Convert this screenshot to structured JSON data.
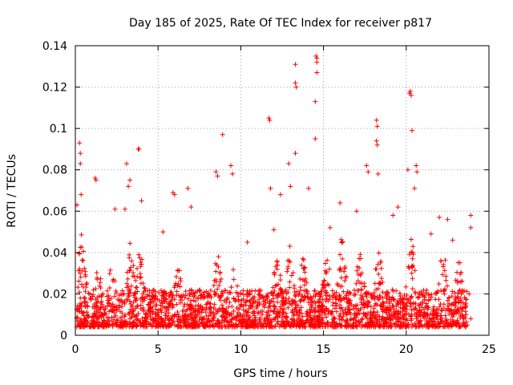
{
  "chart_data": {
    "type": "scatter",
    "title": "Day 185 of 2025, Rate Of TEC Index for receiver p817",
    "xlabel": "GPS time / hours",
    "ylabel": "ROTI / TECUs",
    "xlim": [
      0,
      25
    ],
    "ylim": [
      0,
      0.14
    ],
    "x_ticks": [
      0,
      5,
      10,
      15,
      20,
      25
    ],
    "y_ticks": [
      0,
      0.02,
      0.04,
      0.06,
      0.08,
      0.1,
      0.12,
      0.14
    ],
    "x_tick_labels": [
      "0",
      "5",
      "10",
      "15",
      "20",
      "25"
    ],
    "y_tick_labels": [
      "0",
      "0.02",
      "0.04",
      "0.06",
      "0.08",
      "0.1",
      "0.12",
      "0.14"
    ],
    "grid": true,
    "marker": "+",
    "color": "#ff0000",
    "series": [
      {
        "name": "ROTI",
        "points": [
          [
            0.1,
            0.063
          ],
          [
            0.25,
            0.093
          ],
          [
            0.3,
            0.088
          ],
          [
            0.3,
            0.083
          ],
          [
            0.35,
            0.068
          ],
          [
            1.2,
            0.076
          ],
          [
            1.25,
            0.075
          ],
          [
            3.1,
            0.083
          ],
          [
            3.3,
            0.075
          ],
          [
            3.2,
            0.072
          ],
          [
            3.8,
            0.09
          ],
          [
            3.85,
            0.09
          ],
          [
            5.9,
            0.069
          ],
          [
            6.0,
            0.068
          ],
          [
            6.8,
            0.071
          ],
          [
            8.5,
            0.079
          ],
          [
            8.6,
            0.077
          ],
          [
            8.9,
            0.097
          ],
          [
            9.4,
            0.082
          ],
          [
            9.5,
            0.078
          ],
          [
            11.7,
            0.105
          ],
          [
            11.75,
            0.104
          ],
          [
            11.8,
            0.071
          ],
          [
            12.4,
            0.068
          ],
          [
            12.9,
            0.083
          ],
          [
            13.0,
            0.072
          ],
          [
            13.3,
            0.131
          ],
          [
            13.3,
            0.122
          ],
          [
            13.35,
            0.12
          ],
          [
            13.3,
            0.088
          ],
          [
            14.1,
            0.071
          ],
          [
            14.5,
            0.113
          ],
          [
            14.5,
            0.095
          ],
          [
            14.55,
            0.135
          ],
          [
            14.6,
            0.134
          ],
          [
            14.6,
            0.132
          ],
          [
            14.6,
            0.127
          ],
          [
            17.6,
            0.082
          ],
          [
            17.7,
            0.079
          ],
          [
            18.2,
            0.104
          ],
          [
            18.25,
            0.101
          ],
          [
            18.2,
            0.094
          ],
          [
            18.25,
            0.092
          ],
          [
            18.3,
            0.078
          ],
          [
            19.2,
            0.058
          ],
          [
            20.1,
            0.08
          ],
          [
            20.2,
            0.117
          ],
          [
            20.25,
            0.118
          ],
          [
            20.3,
            0.116
          ],
          [
            20.35,
            0.099
          ],
          [
            20.6,
            0.082
          ],
          [
            20.65,
            0.079
          ],
          [
            20.5,
            0.071
          ],
          [
            22.0,
            0.057
          ],
          [
            22.5,
            0.056
          ],
          [
            23.9,
            0.058
          ],
          [
            23.9,
            0.052
          ],
          [
            23.8,
            0.02
          ],
          [
            23.9,
            0.008
          ],
          [
            23.7,
            0.005
          ],
          [
            2.4,
            0.061
          ],
          [
            3.0,
            0.061
          ],
          [
            4.0,
            0.065
          ],
          [
            5.3,
            0.05
          ],
          [
            7.0,
            0.062
          ],
          [
            10.4,
            0.045
          ],
          [
            12.0,
            0.051
          ],
          [
            15.4,
            0.052
          ],
          [
            16.0,
            0.064
          ],
          [
            17.0,
            0.06
          ],
          [
            19.5,
            0.062
          ],
          [
            21.5,
            0.049
          ],
          [
            22.8,
            0.046
          ]
        ]
      }
    ],
    "dense_band": {
      "x_range": [
        0,
        24
      ],
      "typical_y_range": [
        0.004,
        0.04
      ],
      "density": "very high",
      "generated": true
    }
  }
}
